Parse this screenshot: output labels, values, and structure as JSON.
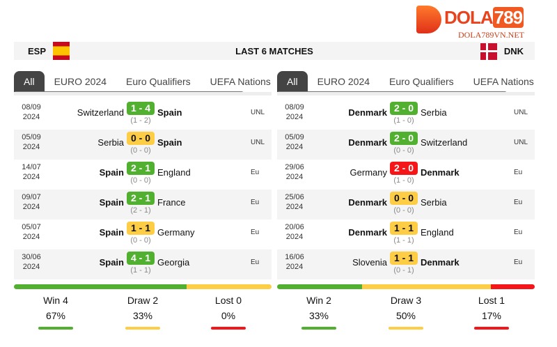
{
  "logo": {
    "name": "DOLA789",
    "sub": "DOLA789VN.NET"
  },
  "header": {
    "left_team": "ESP",
    "title": "LAST 6 MATCHES",
    "right_team": "DNK"
  },
  "colors": {
    "win": "#52b030",
    "draw": "#fecd46",
    "loss": "#f5161a"
  },
  "tabs": [
    "All",
    "EURO 2024",
    "Euro Qualifiers",
    "UEFA Nations Le"
  ],
  "panels": [
    {
      "matches": [
        {
          "date": "08/09",
          "year": "2024",
          "home": "Switzerland",
          "away": "Spain",
          "score": "1 - 4",
          "ht": "(1 - 2)",
          "comp": "UNL",
          "res": "w",
          "bold": "away"
        },
        {
          "date": "05/09",
          "year": "2024",
          "home": "Serbia",
          "away": "Spain",
          "score": "0 - 0",
          "ht": "(0 - 0)",
          "comp": "UNL",
          "res": "d",
          "bold": "away"
        },
        {
          "date": "14/07",
          "year": "2024",
          "home": "Spain",
          "away": "England",
          "score": "2 - 1",
          "ht": "(0 - 0)",
          "comp": "Eu",
          "res": "w",
          "bold": "home"
        },
        {
          "date": "09/07",
          "year": "2024",
          "home": "Spain",
          "away": "France",
          "score": "2 - 1",
          "ht": "(2 - 1)",
          "comp": "Eu",
          "res": "w",
          "bold": "home"
        },
        {
          "date": "05/07",
          "year": "2024",
          "home": "Spain",
          "away": "Germany",
          "score": "1 - 1",
          "ht": "(0 - 0)",
          "comp": "Eu",
          "res": "d",
          "bold": "home"
        },
        {
          "date": "30/06",
          "year": "2024",
          "home": "Spain",
          "away": "Georgia",
          "score": "4 - 1",
          "ht": "(1 - 1)",
          "comp": "Eu",
          "res": "w",
          "bold": "home"
        }
      ],
      "summary": {
        "win_label": "Win 4",
        "win_pct": "67%",
        "draw_label": "Draw 2",
        "draw_pct": "33%",
        "lost_label": "Lost 0",
        "lost_pct": "0%",
        "win": 67,
        "draw": 33,
        "lost": 0
      }
    },
    {
      "matches": [
        {
          "date": "08/09",
          "year": "2024",
          "home": "Denmark",
          "away": "Serbia",
          "score": "2 - 0",
          "ht": "(1 - 0)",
          "comp": "UNL",
          "res": "w",
          "bold": "home"
        },
        {
          "date": "05/09",
          "year": "2024",
          "home": "Denmark",
          "away": "Switzerland",
          "score": "2 - 0",
          "ht": "(0 - 0)",
          "comp": "UNL",
          "res": "w",
          "bold": "home"
        },
        {
          "date": "29/06",
          "year": "2024",
          "home": "Germany",
          "away": "Denmark",
          "score": "2 - 0",
          "ht": "(1 - 0)",
          "comp": "Eu",
          "res": "l",
          "bold": "away"
        },
        {
          "date": "25/06",
          "year": "2024",
          "home": "Denmark",
          "away": "Serbia",
          "score": "0 - 0",
          "ht": "(0 - 0)",
          "comp": "Eu",
          "res": "d",
          "bold": "home"
        },
        {
          "date": "20/06",
          "year": "2024",
          "home": "Denmark",
          "away": "England",
          "score": "1 - 1",
          "ht": "(1 - 1)",
          "comp": "Eu",
          "res": "d",
          "bold": "home"
        },
        {
          "date": "16/06",
          "year": "2024",
          "home": "Slovenia",
          "away": "Denmark",
          "score": "1 - 1",
          "ht": "(0 - 1)",
          "comp": "Eu",
          "res": "d",
          "bold": "away"
        }
      ],
      "summary": {
        "win_label": "Win 2",
        "win_pct": "33%",
        "draw_label": "Draw 3",
        "draw_pct": "50%",
        "lost_label": "Lost 1",
        "lost_pct": "17%",
        "win": 33,
        "draw": 50,
        "lost": 17
      }
    }
  ]
}
